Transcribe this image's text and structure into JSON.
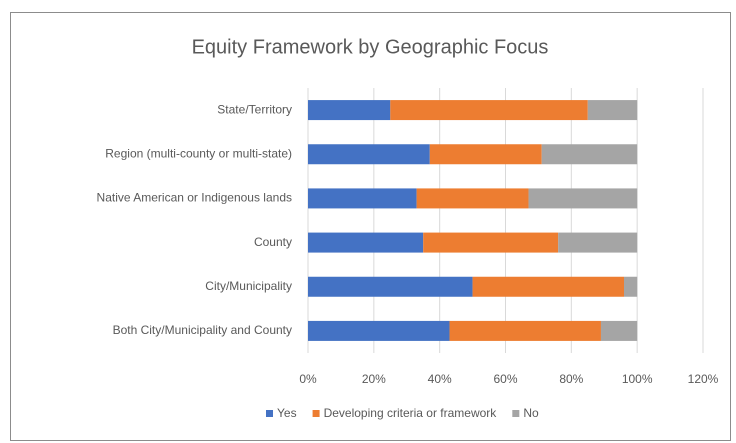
{
  "chart_data": {
    "type": "stacked_barh",
    "title": "Equity Framework by Geographic Focus",
    "categories": [
      "State/Territory",
      "Region (multi-county or multi-state)",
      "Native American or Indigenous lands",
      "County",
      "City/Municipality",
      "Both City/Municipality and County"
    ],
    "series": [
      {
        "name": "Yes",
        "color": "#4472c4",
        "values": [
          25,
          37,
          33,
          35,
          50,
          43
        ]
      },
      {
        "name": "Developing criteria or framework",
        "color": "#ed7d31",
        "values": [
          60,
          34,
          34,
          41,
          46,
          46
        ]
      },
      {
        "name": "No",
        "color": "#a5a5a5",
        "values": [
          15,
          29,
          33,
          24,
          4,
          11
        ]
      }
    ],
    "xlim": [
      0,
      120
    ],
    "xticks": [
      {
        "value": 0,
        "label": "0%"
      },
      {
        "value": 20,
        "label": "20%"
      },
      {
        "value": 40,
        "label": "40%"
      },
      {
        "value": 60,
        "label": "60%"
      },
      {
        "value": 80,
        "label": "80%"
      },
      {
        "value": 100,
        "label": "100%"
      },
      {
        "value": 120,
        "label": "120%"
      }
    ],
    "grid": true,
    "legend": "bottom"
  }
}
